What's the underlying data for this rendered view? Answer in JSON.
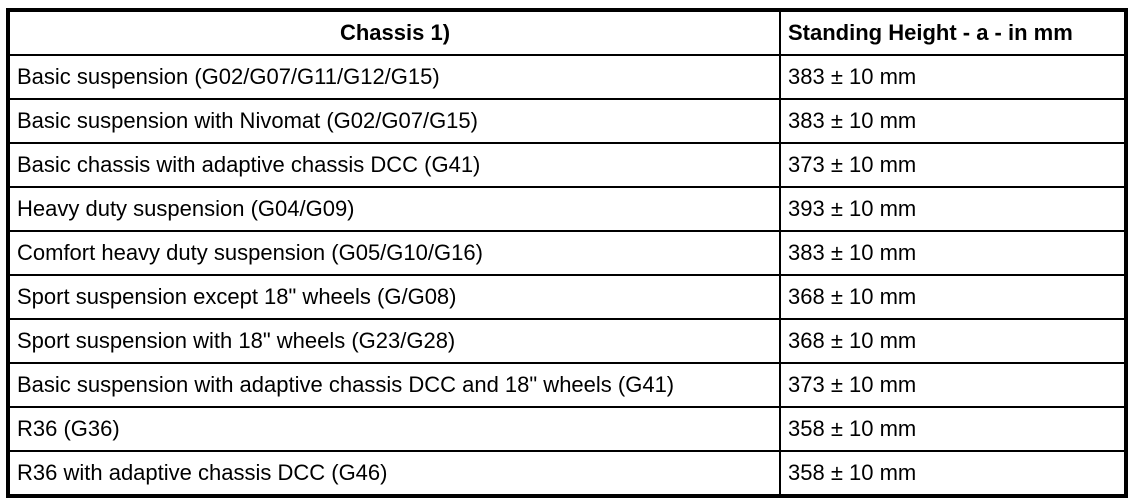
{
  "table": {
    "headers": {
      "chassis": "Chassis 1)",
      "height": "Standing Height - a - in mm"
    },
    "rows": [
      {
        "chassis": "Basic suspension (G02/G07/G11/G12/G15)",
        "height": "383 ± 10 mm"
      },
      {
        "chassis": "Basic suspension with Nivomat (G02/G07/G15)",
        "height": "383 ± 10 mm"
      },
      {
        "chassis": "Basic chassis with adaptive chassis DCC (G41)",
        "height": "373 ± 10 mm"
      },
      {
        "chassis": "Heavy duty suspension (G04/G09)",
        "height": "393 ± 10 mm"
      },
      {
        "chassis": "Comfort heavy duty suspension (G05/G10/G16)",
        "height": "383 ± 10 mm"
      },
      {
        "chassis": "Sport suspension except 18\" wheels (G/G08)",
        "height": "368 ± 10 mm"
      },
      {
        "chassis": "Sport suspension with 18\" wheels (G23/G28)",
        "height": "368 ± 10 mm"
      },
      {
        "chassis": "Basic suspension with adaptive chassis DCC and 18\" wheels (G41)",
        "height": "373 ± 10 mm"
      },
      {
        "chassis": "R36 (G36)",
        "height": "358 ± 10 mm"
      },
      {
        "chassis": "R36 with adaptive chassis DCC (G46)",
        "height": "358 ± 10 mm"
      }
    ],
    "colors": {
      "border": "#000000",
      "background": "#ffffff",
      "text": "#000000"
    }
  }
}
